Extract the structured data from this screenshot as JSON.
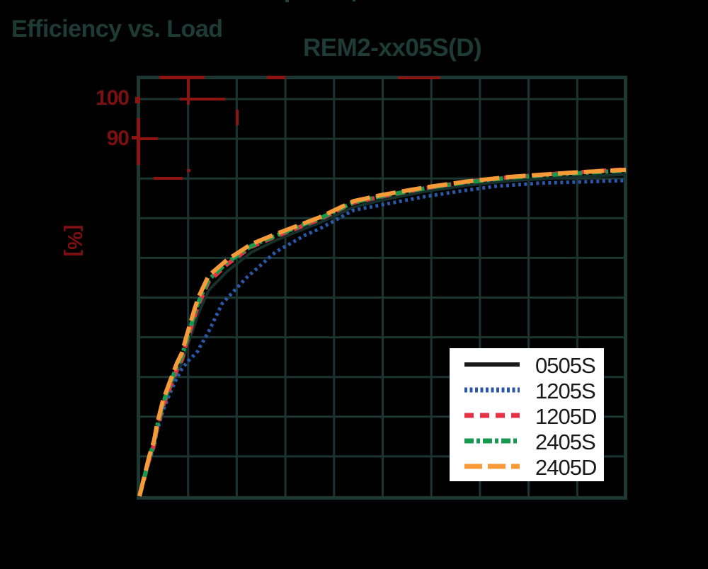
{
  "header": {
    "section_title": "Efficiency vs. Load",
    "chart_title": "REM2-xx05S(D)"
  },
  "axis": {
    "y_unit": "[%]",
    "y_tick_labels": [
      "100",
      "90"
    ],
    "tick_label_color": "#7c1010"
  },
  "colors": {
    "background": "#000000",
    "grid": "#1c3531",
    "frame": "#1d3733",
    "title_text": "#1e3b36",
    "legend_background": "#ffffff",
    "legend_text": "#1a1a1a",
    "artifact_red": "#8e1412"
  },
  "chart_data": {
    "type": "line",
    "title": "REM2-xx05S(D)",
    "subtitle": "Efficiency vs. Load",
    "xlabel": "",
    "ylabel": "[%]",
    "x_axis": {
      "range": [
        0,
        100
      ],
      "gridline_step": 10,
      "tick_labels_visible": false
    },
    "y_axis": {
      "range": [
        0,
        105
      ],
      "gridline_step": 10,
      "visible_tick_labels": [
        100,
        90
      ],
      "unit": "%"
    },
    "grid": true,
    "legend_position": "inside-bottom-right",
    "series": [
      {
        "name": "0505S",
        "color": "#16302b",
        "legend_color": "#1a1a1a",
        "dash": "",
        "width": 4,
        "legend_dash": "",
        "points": [
          [
            0,
            0
          ],
          [
            1,
            4.5
          ],
          [
            2,
            9
          ],
          [
            3,
            12.8
          ],
          [
            3.6,
            16.6
          ],
          [
            4.8,
            22
          ],
          [
            6.3,
            26.8
          ],
          [
            7.7,
            31
          ],
          [
            8.7,
            33.4
          ],
          [
            9.6,
            36.8
          ],
          [
            11.3,
            43
          ],
          [
            12.1,
            46
          ],
          [
            14.2,
            51.8
          ],
          [
            18,
            56.6
          ],
          [
            23,
            61.4
          ],
          [
            28,
            64.4
          ],
          [
            34,
            67.4
          ],
          [
            37,
            68.8
          ],
          [
            44,
            72.8
          ],
          [
            50,
            74.6
          ],
          [
            59,
            76.8
          ],
          [
            67,
            78.2
          ],
          [
            76,
            79.4
          ],
          [
            88,
            80.3
          ],
          [
            100,
            81
          ]
        ]
      },
      {
        "name": "1205S",
        "color": "#2b57a8",
        "dash": "4 4.5",
        "width": 5,
        "legend_dash": "4 3.5",
        "points": [
          [
            0,
            0
          ],
          [
            1,
            4.4
          ],
          [
            2,
            8.8
          ],
          [
            3,
            12.5
          ],
          [
            3.6,
            16.2
          ],
          [
            4.8,
            21.4
          ],
          [
            6.3,
            26
          ],
          [
            7.7,
            29.8
          ],
          [
            8.7,
            32
          ],
          [
            10,
            34
          ],
          [
            12,
            36.5
          ],
          [
            12.4,
            37.5
          ],
          [
            14.2,
            41.4
          ],
          [
            17,
            48.5
          ],
          [
            22,
            55
          ],
          [
            28,
            61.5
          ],
          [
            34,
            65.7
          ],
          [
            37,
            67.3
          ],
          [
            44,
            72
          ],
          [
            50,
            73.4
          ],
          [
            59,
            75.5
          ],
          [
            67,
            77
          ],
          [
            73,
            78
          ],
          [
            82,
            78.8
          ],
          [
            100,
            79.5
          ]
        ]
      },
      {
        "name": "1205D",
        "color": "#e73246",
        "dash": "13 9",
        "width": 6,
        "legend_dash": "13 9",
        "points": [
          [
            0,
            0
          ],
          [
            1,
            4.6
          ],
          [
            2,
            9.2
          ],
          [
            3,
            13
          ],
          [
            3.6,
            17
          ],
          [
            4.8,
            22.6
          ],
          [
            6.3,
            27.6
          ],
          [
            7.7,
            32
          ],
          [
            8.7,
            34.4
          ],
          [
            9.6,
            38.5
          ],
          [
            11.3,
            45.2
          ],
          [
            12.1,
            48.2
          ],
          [
            14.2,
            54
          ],
          [
            18,
            58.4
          ],
          [
            23,
            62.8
          ],
          [
            28,
            65.4
          ],
          [
            34,
            68.3
          ],
          [
            37,
            69.7
          ],
          [
            44,
            73.9
          ],
          [
            50,
            75.5
          ],
          [
            59,
            77.6
          ],
          [
            67,
            79.1
          ],
          [
            76,
            80.3
          ],
          [
            88,
            81.4
          ],
          [
            100,
            82.3
          ]
        ]
      },
      {
        "name": "2405S",
        "color": "#189950",
        "dash": "14 5 4 5",
        "width": 6,
        "legend_dash": "13 4 5 4",
        "points": [
          [
            0,
            0
          ],
          [
            1,
            4.8
          ],
          [
            2,
            9.6
          ],
          [
            3,
            13.5
          ],
          [
            3.6,
            17.5
          ],
          [
            4.8,
            23.3
          ],
          [
            6.3,
            28.3
          ],
          [
            7.7,
            32.8
          ],
          [
            8.7,
            35.2
          ],
          [
            9.6,
            39
          ],
          [
            11.3,
            45.8
          ],
          [
            12.1,
            48.8
          ],
          [
            14.2,
            54.5
          ],
          [
            18,
            58.8
          ],
          [
            23,
            63
          ],
          [
            28,
            65.6
          ],
          [
            34,
            68.5
          ],
          [
            37,
            69.9
          ],
          [
            44,
            74
          ],
          [
            50,
            75.6
          ],
          [
            59,
            77.6
          ],
          [
            67,
            79
          ],
          [
            76,
            80.2
          ],
          [
            88,
            81.2
          ],
          [
            100,
            82
          ]
        ]
      },
      {
        "name": "2405D",
        "color": "#f79b38",
        "dash": "28 9",
        "width": 6,
        "legend_dash": "25 8",
        "points": [
          [
            0,
            0
          ],
          [
            1,
            5
          ],
          [
            2,
            10
          ],
          [
            3,
            14
          ],
          [
            3.6,
            18
          ],
          [
            4.8,
            24
          ],
          [
            6.3,
            29
          ],
          [
            7.7,
            33.5
          ],
          [
            8.7,
            36
          ],
          [
            9.6,
            40
          ],
          [
            11.3,
            47
          ],
          [
            12.1,
            50
          ],
          [
            14.2,
            55.5
          ],
          [
            18,
            59.5
          ],
          [
            23,
            63.5
          ],
          [
            28,
            66
          ],
          [
            34,
            68.8
          ],
          [
            37,
            70.2
          ],
          [
            44,
            74.3
          ],
          [
            50,
            75.9
          ],
          [
            59,
            77.8
          ],
          [
            67,
            79.2
          ],
          [
            76,
            80.4
          ],
          [
            88,
            81.4
          ],
          [
            100,
            82.2
          ]
        ]
      }
    ]
  },
  "artifacts": {
    "red_color": "#8e1412",
    "red_marks": [
      [
        225,
        107,
        64,
        5
      ],
      [
        377,
        107,
        26,
        5
      ],
      [
        562,
        108,
        60,
        4
      ],
      [
        264,
        108,
        4,
        40
      ],
      [
        254,
        138,
        64,
        4
      ],
      [
        333,
        155,
        4,
        22
      ],
      [
        193,
        167,
        5,
        66
      ],
      [
        197,
        194,
        26,
        4
      ],
      [
        186,
        192,
        12,
        5
      ],
      [
        191,
        137,
        7,
        9
      ],
      [
        217,
        250,
        41,
        4
      ],
      [
        264,
        239,
        5,
        4
      ]
    ],
    "speck_color": "#1d4540",
    "top_specks": [
      [
        403,
        0,
        5,
        3
      ],
      [
        498,
        0,
        4,
        2
      ]
    ]
  }
}
